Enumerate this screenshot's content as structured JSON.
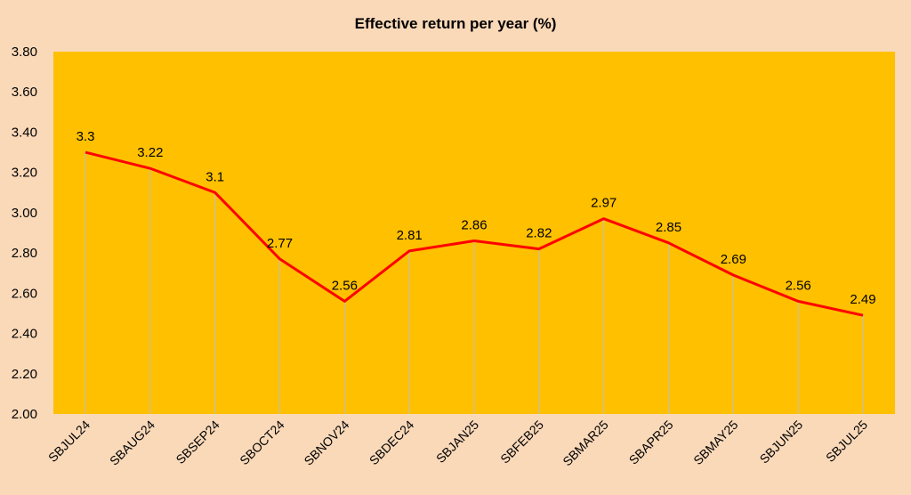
{
  "chart_data": {
    "type": "line",
    "title": "Effective  return per year (%)",
    "xlabel": "",
    "ylabel": "",
    "categories": [
      "SBJUL24",
      "SBAUG24",
      "SBSEP24",
      "SBOCT24",
      "SBNOV24",
      "SBDEC24",
      "SBJAN25",
      "SBFEB25",
      "SBMAR25",
      "SBAPR25",
      "SBMAY25",
      "SBJUN25",
      "SBJUL25"
    ],
    "series": [
      {
        "values": [
          3.3,
          3.22,
          3.1,
          2.77,
          2.56,
          2.81,
          2.86,
          2.82,
          2.97,
          2.85,
          2.69,
          2.56,
          2.49
        ]
      }
    ],
    "data_labels": [
      "3.3",
      "3.22",
      "3.1",
      "2.77",
      "2.56",
      "2.81",
      "2.86",
      "2.82",
      "2.97",
      "2.85",
      "2.69",
      "2.56",
      "2.49"
    ],
    "y_ticks": [
      "2.00",
      "2.20",
      "2.40",
      "2.60",
      "2.80",
      "3.00",
      "3.20",
      "3.40",
      "3.60",
      "3.80"
    ],
    "ylim": [
      2.0,
      3.8
    ],
    "grid": false,
    "legend": "none",
    "colors": {
      "page_background": "#fad9b9",
      "plot_background": "#ffc000",
      "line": "#ff0000",
      "drop_lines": "#bfbfbf"
    }
  }
}
